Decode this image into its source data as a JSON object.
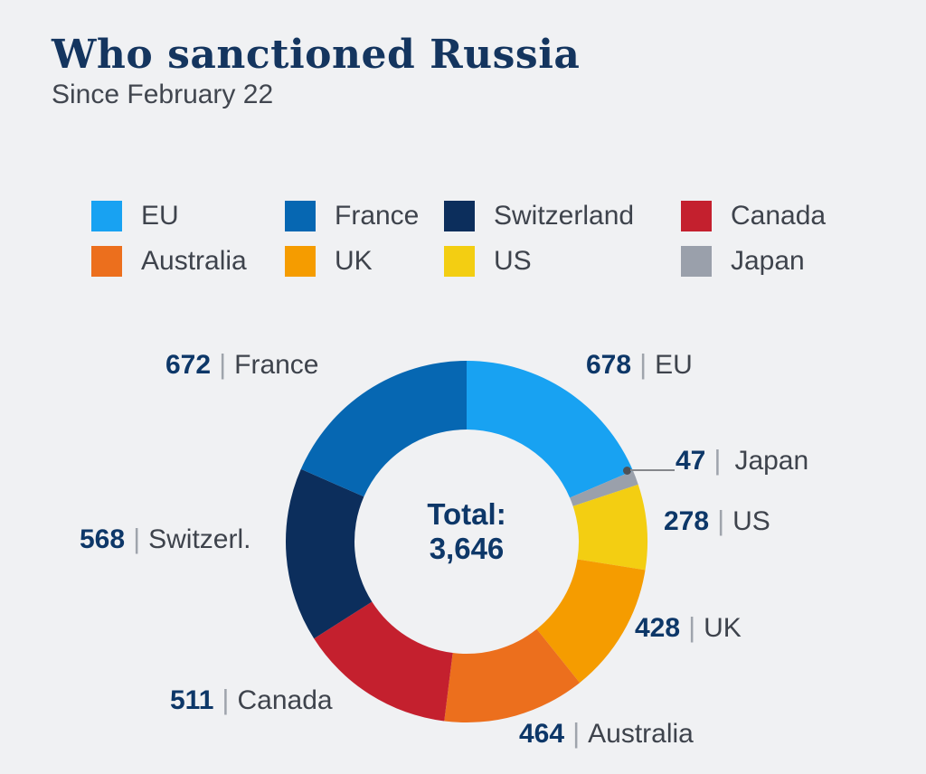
{
  "page": {
    "background": "#F0F1F3"
  },
  "header": {
    "title": "Who sanctioned Russia",
    "subtitle": "Since February 22"
  },
  "legend": {
    "items": [
      {
        "label": "EU",
        "color": "#18A2F2"
      },
      {
        "label": "France",
        "color": "#0667B2"
      },
      {
        "label": "Switzerland",
        "color": "#0C2E5C"
      },
      {
        "label": "Canada",
        "color": "#C4202E"
      },
      {
        "label": "Australia",
        "color": "#EC6F1D"
      },
      {
        "label": "UK",
        "color": "#F59C00"
      },
      {
        "label": "US",
        "color": "#F3CE12"
      },
      {
        "label": "Japan",
        "color": "#9AA0AB"
      }
    ]
  },
  "chart_data": {
    "type": "pie",
    "donut": true,
    "title": "Who sanctioned Russia",
    "subtitle": "Since February 22",
    "start_angle_deg": 0,
    "direction": "clockwise",
    "total": 3646,
    "center_label": {
      "line1": "Total:",
      "line2": "3,646"
    },
    "slices": [
      {
        "label": "EU",
        "value": 678,
        "color": "#18A2F2"
      },
      {
        "label": "Japan",
        "value": 47,
        "color": "#9AA0AB"
      },
      {
        "label": "US",
        "value": 278,
        "color": "#F3CE12"
      },
      {
        "label": "UK",
        "value": 428,
        "color": "#F59C00"
      },
      {
        "label": "Australia",
        "value": 464,
        "color": "#EC6F1D"
      },
      {
        "label": "Canada",
        "value": 511,
        "color": "#C4202E"
      },
      {
        "label": "Switzerland",
        "value": 568,
        "color": "#0C2E5C"
      },
      {
        "label": "France",
        "value": 672,
        "color": "#0667B2"
      }
    ]
  },
  "callouts": {
    "eu": {
      "value": "678",
      "name": "EU"
    },
    "japan": {
      "value": "47",
      "name": "Japan"
    },
    "us": {
      "value": "278",
      "name": "US"
    },
    "uk": {
      "value": "428",
      "name": "UK"
    },
    "australia": {
      "value": "464",
      "name": "Australia"
    },
    "canada": {
      "value": "511",
      "name": "Canada"
    },
    "switzerland": {
      "value": "568",
      "name": "Switzerl."
    },
    "france": {
      "value": "672",
      "name": "France"
    }
  },
  "ui": {
    "separator": "|"
  }
}
